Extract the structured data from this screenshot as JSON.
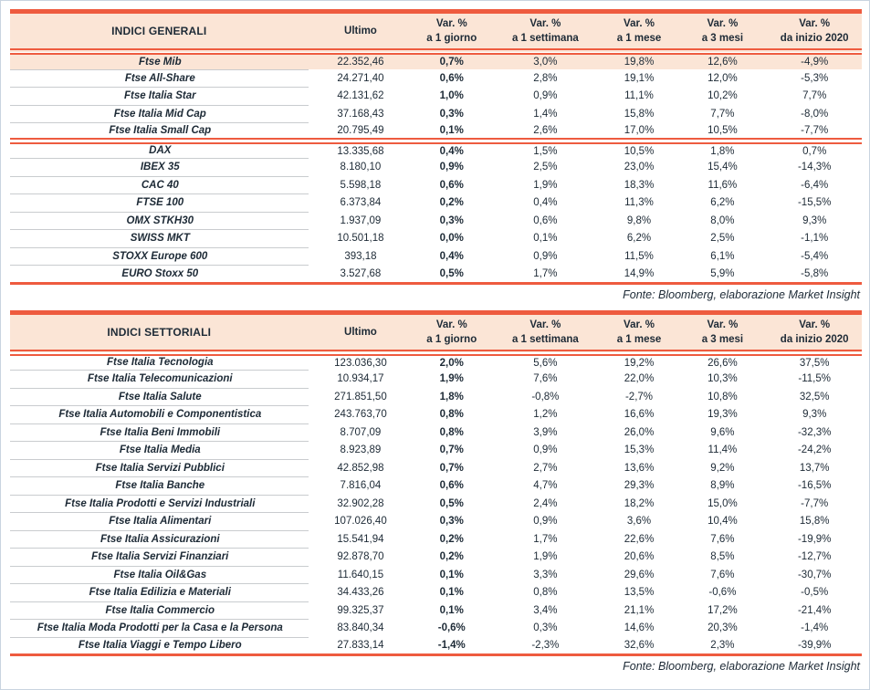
{
  "tables": [
    {
      "title": "INDICI GENERALI",
      "header": {
        "last_label": "Ultimo",
        "var_label": "Var. %",
        "periods": [
          "a 1 giorno",
          "a 1 settimana",
          "a 1 mese",
          "a 3 mesi",
          "da inizio 2020"
        ]
      },
      "source": "Fonte: Bloomberg, elaborazione Market Insight",
      "groups": [
        {
          "rows": [
            {
              "name": "Ftse Mib",
              "highlight": true,
              "values": [
                "22.352,46",
                "0,7%",
                "3,0%",
                "19,8%",
                "12,6%",
                "-4,9%"
              ]
            },
            {
              "name": "Ftse All-Share",
              "values": [
                "24.271,40",
                "0,6%",
                "2,8%",
                "19,1%",
                "12,0%",
                "-5,3%"
              ]
            },
            {
              "name": "Ftse Italia Star",
              "values": [
                "42.131,62",
                "1,0%",
                "0,9%",
                "11,1%",
                "10,2%",
                "7,7%"
              ]
            },
            {
              "name": "Ftse Italia Mid Cap",
              "values": [
                "37.168,43",
                "0,3%",
                "1,4%",
                "15,8%",
                "7,7%",
                "-8,0%"
              ]
            },
            {
              "name": "Ftse Italia Small Cap",
              "values": [
                "20.795,49",
                "0,1%",
                "2,6%",
                "17,0%",
                "10,5%",
                "-7,7%"
              ]
            }
          ]
        },
        {
          "rows": [
            {
              "name": "DAX",
              "values": [
                "13.335,68",
                "0,4%",
                "1,5%",
                "10,5%",
                "1,8%",
                "0,7%"
              ]
            },
            {
              "name": "IBEX 35",
              "values": [
                "8.180,10",
                "0,9%",
                "2,5%",
                "23,0%",
                "15,4%",
                "-14,3%"
              ]
            },
            {
              "name": "CAC 40",
              "values": [
                "5.598,18",
                "0,6%",
                "1,9%",
                "18,3%",
                "11,6%",
                "-6,4%"
              ]
            },
            {
              "name": "FTSE 100",
              "values": [
                "6.373,84",
                "0,2%",
                "0,4%",
                "11,3%",
                "6,2%",
                "-15,5%"
              ]
            },
            {
              "name": "OMX STKH30",
              "values": [
                "1.937,09",
                "0,3%",
                "0,6%",
                "9,8%",
                "8,0%",
                "9,3%"
              ]
            },
            {
              "name": "SWISS MKT",
              "values": [
                "10.501,18",
                "0,0%",
                "0,1%",
                "6,2%",
                "2,5%",
                "-1,1%"
              ]
            },
            {
              "name": "STOXX Europe 600",
              "values": [
                "393,18",
                "0,4%",
                "0,9%",
                "11,5%",
                "6,1%",
                "-5,4%"
              ]
            },
            {
              "name": "EURO Stoxx 50",
              "values": [
                "3.527,68",
                "0,5%",
                "1,7%",
                "14,9%",
                "5,9%",
                "-5,8%"
              ]
            }
          ]
        }
      ]
    },
    {
      "title": "INDICI SETTORIALI",
      "header": {
        "last_label": "Ultimo",
        "var_label": "Var. %",
        "periods": [
          "a 1 giorno",
          "a 1 settimana",
          "a 1 mese",
          "a 3 mesi",
          "da inizio 2020"
        ]
      },
      "source": "Fonte: Bloomberg, elaborazione Market Insight",
      "groups": [
        {
          "rows": [
            {
              "name": "Ftse Italia Tecnologia",
              "values": [
                "123.036,30",
                "2,0%",
                "5,6%",
                "19,2%",
                "26,6%",
                "37,5%"
              ]
            },
            {
              "name": "Ftse Italia Telecomunicazioni",
              "values": [
                "10.934,17",
                "1,9%",
                "7,6%",
                "22,0%",
                "10,3%",
                "-11,5%"
              ]
            },
            {
              "name": "Ftse Italia Salute",
              "values": [
                "271.851,50",
                "1,8%",
                "-0,8%",
                "-2,7%",
                "10,8%",
                "32,5%"
              ]
            },
            {
              "name": "Ftse Italia Automobili e Componentistica",
              "values": [
                "243.763,70",
                "0,8%",
                "1,2%",
                "16,6%",
                "19,3%",
                "9,3%"
              ]
            },
            {
              "name": "Ftse Italia Beni Immobili",
              "values": [
                "8.707,09",
                "0,8%",
                "3,9%",
                "26,0%",
                "9,6%",
                "-32,3%"
              ]
            },
            {
              "name": "Ftse Italia Media",
              "values": [
                "8.923,89",
                "0,7%",
                "0,9%",
                "15,3%",
                "11,4%",
                "-24,2%"
              ]
            },
            {
              "name": "Ftse Italia Servizi Pubblici",
              "values": [
                "42.852,98",
                "0,7%",
                "2,7%",
                "13,6%",
                "9,2%",
                "13,7%"
              ]
            },
            {
              "name": "Ftse Italia Banche",
              "values": [
                "7.816,04",
                "0,6%",
                "4,7%",
                "29,3%",
                "8,9%",
                "-16,5%"
              ]
            },
            {
              "name": "Ftse Italia Prodotti e Servizi Industriali",
              "values": [
                "32.902,28",
                "0,5%",
                "2,4%",
                "18,2%",
                "15,0%",
                "-7,7%"
              ]
            },
            {
              "name": "Ftse Italia Alimentari",
              "values": [
                "107.026,40",
                "0,3%",
                "0,9%",
                "3,6%",
                "10,4%",
                "15,8%"
              ]
            },
            {
              "name": "Ftse Italia Assicurazioni",
              "values": [
                "15.541,94",
                "0,2%",
                "1,7%",
                "22,6%",
                "7,6%",
                "-19,9%"
              ]
            },
            {
              "name": "Ftse Italia Servizi Finanziari",
              "values": [
                "92.878,70",
                "0,2%",
                "1,9%",
                "20,6%",
                "8,5%",
                "-12,7%"
              ]
            },
            {
              "name": "Ftse Italia Oil&Gas",
              "values": [
                "11.640,15",
                "0,1%",
                "3,3%",
                "29,6%",
                "7,6%",
                "-30,7%"
              ]
            },
            {
              "name": "Ftse Italia Edilizia e Materiali",
              "values": [
                "34.433,26",
                "0,1%",
                "0,8%",
                "13,5%",
                "-0,6%",
                "-0,5%"
              ]
            },
            {
              "name": "Ftse Italia Commercio",
              "values": [
                "99.325,37",
                "0,1%",
                "3,4%",
                "21,1%",
                "17,2%",
                "-21,4%"
              ]
            },
            {
              "name": "Ftse Italia Moda Prodotti per la Casa e la Persona",
              "values": [
                "83.840,34",
                "-0,6%",
                "0,3%",
                "14,6%",
                "20,3%",
                "-1,4%"
              ]
            },
            {
              "name": "Ftse Italia Viaggi e Tempo Libero",
              "values": [
                "27.833,14",
                "-1,4%",
                "-2,3%",
                "32,6%",
                "2,3%",
                "-39,9%"
              ]
            }
          ]
        }
      ]
    }
  ],
  "colors": {
    "accent_line": "#ee5b3f",
    "header_fill": "#fbe5d6",
    "text": "#1d2a36",
    "row_separator": "#c9cccf"
  }
}
